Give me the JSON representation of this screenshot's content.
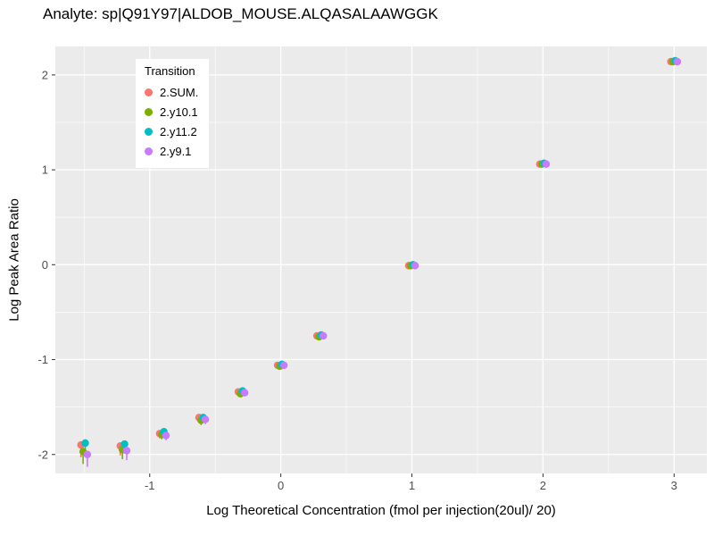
{
  "chart_data": {
    "type": "scatter",
    "title": "Analyte: sp|Q91Y97|ALDOB_MOUSE.ALQASALAAWGGK",
    "xlabel": "Log Theoretical Concentration (fmol per injection(20ul)/ 20)",
    "ylabel": "Log Peak Area Ratio",
    "legend_title": "Transition",
    "legend_position": "top-left-inside",
    "grid": "on",
    "panel_color": "#EBEBEB",
    "gridline_color": "#FFFFFF",
    "tick_text_color": "#4D4D4D",
    "xlim": [
      -1.72,
      3.25
    ],
    "ylim": [
      -2.2,
      2.3
    ],
    "xticks": [
      -1,
      0,
      1,
      2,
      3
    ],
    "yticks": [
      -2,
      -1,
      0,
      1,
      2
    ],
    "x": [
      -1.5,
      -1.2,
      -0.9,
      -0.6,
      -0.3,
      0,
      0.3,
      1,
      2,
      3
    ],
    "elo": [
      0.13,
      0.1,
      0.05,
      0.05,
      0.03,
      0.02,
      0.02,
      0.01,
      0.01,
      0.01
    ],
    "ehi": [
      0.04,
      0.03,
      0.03,
      0.03,
      0.02,
      0.01,
      0.01,
      0.01,
      0.01,
      0.01
    ],
    "series": [
      {
        "name": "2.SUM.",
        "color": "#F8766D",
        "y": [
          -1.9,
          -1.91,
          -1.78,
          -1.61,
          -1.34,
          -1.06,
          -0.75,
          -0.01,
          1.06,
          2.14
        ]
      },
      {
        "name": "2.y10.1",
        "color": "#7CAE00",
        "y": [
          -1.97,
          -1.95,
          -1.79,
          -1.64,
          -1.36,
          -1.07,
          -0.76,
          -0.01,
          1.06,
          2.14
        ]
      },
      {
        "name": "2.y11.2",
        "color": "#00BFC4",
        "y": [
          -1.88,
          -1.89,
          -1.76,
          -1.61,
          -1.33,
          -1.05,
          -0.74,
          0.0,
          1.07,
          2.15
        ]
      },
      {
        "name": "2.y9.1",
        "color": "#C77CFF",
        "y": [
          -2.0,
          -1.96,
          -1.8,
          -1.63,
          -1.35,
          -1.06,
          -0.75,
          -0.01,
          1.06,
          2.14
        ]
      }
    ]
  }
}
